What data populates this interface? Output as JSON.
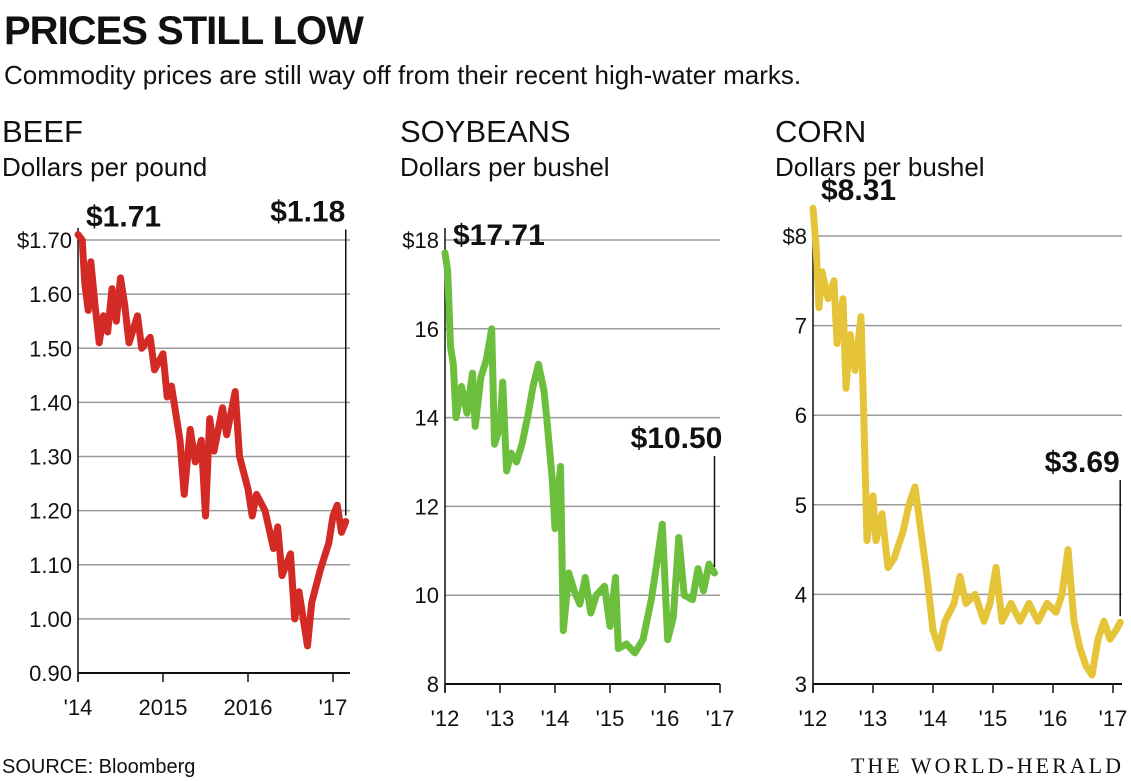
{
  "title": "PRICES STILL LOW",
  "subtitle": "Commodity prices are still way off from their recent high-water marks.",
  "source": "SOURCE: Bloomberg",
  "credit": "THE WORLD-HERALD",
  "chart_data": [
    {
      "type": "line",
      "title": "BEEF",
      "subtitle": "Dollars per pound",
      "color": "#d42a26",
      "grid": true,
      "xlim": [
        2014.0,
        2017.2
      ],
      "ylim": [
        0.9,
        1.7
      ],
      "xticks": [
        {
          "value": 2014,
          "label": "'14"
        },
        2015,
        2016,
        {
          "value": 2017,
          "label": "'17"
        }
      ],
      "yticks": [
        {
          "value": 1.7,
          "label": "$1.70"
        },
        {
          "value": 1.6,
          "label": "1.60"
        },
        {
          "value": 1.5,
          "label": "1.50"
        },
        {
          "value": 1.4,
          "label": "1.40"
        },
        {
          "value": 1.3,
          "label": "1.30"
        },
        {
          "value": 1.2,
          "label": "1.20"
        },
        {
          "value": 1.1,
          "label": "1.10"
        },
        {
          "value": 1.0,
          "label": "1.00"
        },
        {
          "value": 0.9,
          "label": "0.90"
        }
      ],
      "x": [
        2014.0,
        2014.05,
        2014.08,
        2014.12,
        2014.15,
        2014.2,
        2014.25,
        2014.3,
        2014.35,
        2014.4,
        2014.45,
        2014.5,
        2014.55,
        2014.6,
        2014.7,
        2014.75,
        2014.85,
        2014.9,
        2015.0,
        2015.05,
        2015.1,
        2015.2,
        2015.25,
        2015.32,
        2015.38,
        2015.45,
        2015.5,
        2015.55,
        2015.6,
        2015.7,
        2015.75,
        2015.85,
        2015.9,
        2016.0,
        2016.05,
        2016.1,
        2016.2,
        2016.3,
        2016.35,
        2016.4,
        2016.5,
        2016.55,
        2016.6,
        2016.7,
        2016.75,
        2016.85,
        2016.95,
        2017.0,
        2017.05,
        2017.1,
        2017.15
      ],
      "values": [
        1.71,
        1.7,
        1.62,
        1.57,
        1.66,
        1.58,
        1.51,
        1.56,
        1.53,
        1.61,
        1.55,
        1.63,
        1.58,
        1.51,
        1.56,
        1.5,
        1.52,
        1.46,
        1.49,
        1.41,
        1.43,
        1.33,
        1.23,
        1.35,
        1.29,
        1.33,
        1.19,
        1.37,
        1.31,
        1.39,
        1.34,
        1.42,
        1.3,
        1.24,
        1.19,
        1.23,
        1.2,
        1.13,
        1.17,
        1.08,
        1.12,
        1.0,
        1.05,
        0.95,
        1.03,
        1.09,
        1.14,
        1.19,
        1.21,
        1.16,
        1.18
      ],
      "annotations": [
        {
          "x": 2014.0,
          "y": 1.71,
          "label": "$1.71"
        },
        {
          "x": 2017.15,
          "y": 1.18,
          "label": "$1.18"
        }
      ]
    },
    {
      "type": "line",
      "title": "SOYBEANS",
      "subtitle": "Dollars per bushel",
      "color": "#6cbf3c",
      "grid": true,
      "xlim": [
        2012.0,
        2017.0
      ],
      "ylim": [
        8,
        18
      ],
      "xticks": [
        {
          "value": 2012,
          "label": "'12"
        },
        {
          "value": 2013,
          "label": "'13"
        },
        {
          "value": 2014,
          "label": "'14"
        },
        {
          "value": 2015,
          "label": "'15"
        },
        {
          "value": 2016,
          "label": "'16"
        },
        {
          "value": 2017,
          "label": "'17"
        }
      ],
      "yticks": [
        {
          "value": 18,
          "label": "$18"
        },
        16,
        14,
        12,
        10,
        8
      ],
      "x": [
        2012.0,
        2012.05,
        2012.1,
        2012.15,
        2012.2,
        2012.3,
        2012.4,
        2012.5,
        2012.55,
        2012.65,
        2012.75,
        2012.85,
        2012.9,
        2013.0,
        2013.05,
        2013.12,
        2013.2,
        2013.3,
        2013.4,
        2013.5,
        2013.6,
        2013.7,
        2013.8,
        2013.85,
        2013.95,
        2014.0,
        2014.1,
        2014.15,
        2014.25,
        2014.35,
        2014.45,
        2014.55,
        2014.65,
        2014.75,
        2014.9,
        2015.0,
        2015.1,
        2015.15,
        2015.3,
        2015.45,
        2015.6,
        2015.75,
        2015.85,
        2015.95,
        2016.05,
        2016.15,
        2016.25,
        2016.35,
        2016.5,
        2016.6,
        2016.7,
        2016.8,
        2016.9
      ],
      "values": [
        17.71,
        17.3,
        15.6,
        15.2,
        14.0,
        14.7,
        14.1,
        15.0,
        13.8,
        14.9,
        15.3,
        16.0,
        13.4,
        13.8,
        14.8,
        12.8,
        13.2,
        13.0,
        13.4,
        14.0,
        14.7,
        15.2,
        14.6,
        14.0,
        12.6,
        11.5,
        12.9,
        9.2,
        10.5,
        10.1,
        9.8,
        10.4,
        9.6,
        10.0,
        10.2,
        9.3,
        10.4,
        8.8,
        8.9,
        8.7,
        9.0,
        9.9,
        10.7,
        11.6,
        9.0,
        9.5,
        11.3,
        10.0,
        9.9,
        10.6,
        10.1,
        10.7,
        10.5
      ],
      "annotations": [
        {
          "x": 2012.0,
          "y": 17.71,
          "label": "$17.71"
        },
        {
          "x": 2016.9,
          "y": 10.5,
          "label": "$10.50"
        }
      ]
    },
    {
      "type": "line",
      "title": "CORN",
      "subtitle": "Dollars per bushel",
      "color": "#e6c43a",
      "grid": true,
      "xlim": [
        2012.0,
        2017.15
      ],
      "ylim": [
        3,
        8
      ],
      "xticks": [
        {
          "value": 2012,
          "label": "'12"
        },
        {
          "value": 2013,
          "label": "'13"
        },
        {
          "value": 2014,
          "label": "'14"
        },
        {
          "value": 2015,
          "label": "'15"
        },
        {
          "value": 2016,
          "label": "'16"
        },
        {
          "value": 2017,
          "label": "'17"
        }
      ],
      "yticks": [
        {
          "value": 8,
          "label": "$8"
        },
        7,
        6,
        5,
        4,
        3
      ],
      "x": [
        2012.0,
        2012.05,
        2012.1,
        2012.15,
        2012.25,
        2012.35,
        2012.4,
        2012.5,
        2012.55,
        2012.62,
        2012.7,
        2012.8,
        2012.85,
        2012.9,
        2013.0,
        2013.05,
        2013.15,
        2013.25,
        2013.35,
        2013.5,
        2013.6,
        2013.7,
        2013.8,
        2013.9,
        2014.0,
        2014.1,
        2014.2,
        2014.35,
        2014.45,
        2014.55,
        2014.7,
        2014.85,
        2014.95,
        2015.05,
        2015.15,
        2015.3,
        2015.45,
        2015.6,
        2015.75,
        2015.9,
        2016.05,
        2016.15,
        2016.25,
        2016.35,
        2016.45,
        2016.55,
        2016.65,
        2016.75,
        2016.85,
        2016.95,
        2017.05,
        2017.12
      ],
      "values": [
        8.31,
        7.9,
        7.2,
        7.6,
        7.3,
        7.5,
        6.8,
        7.3,
        6.3,
        6.9,
        6.5,
        7.1,
        5.9,
        4.6,
        5.1,
        4.6,
        4.9,
        4.3,
        4.4,
        4.7,
        5.0,
        5.2,
        4.7,
        4.2,
        3.6,
        3.4,
        3.7,
        3.9,
        4.2,
        3.9,
        4.0,
        3.7,
        3.9,
        4.3,
        3.7,
        3.9,
        3.7,
        3.9,
        3.7,
        3.9,
        3.8,
        4.0,
        4.5,
        3.7,
        3.4,
        3.2,
        3.1,
        3.5,
        3.7,
        3.5,
        3.6,
        3.69
      ],
      "annotations": [
        {
          "x": 2012.0,
          "y": 8.31,
          "label": "$8.31"
        },
        {
          "x": 2017.12,
          "y": 3.69,
          "label": "$3.69"
        }
      ]
    }
  ]
}
